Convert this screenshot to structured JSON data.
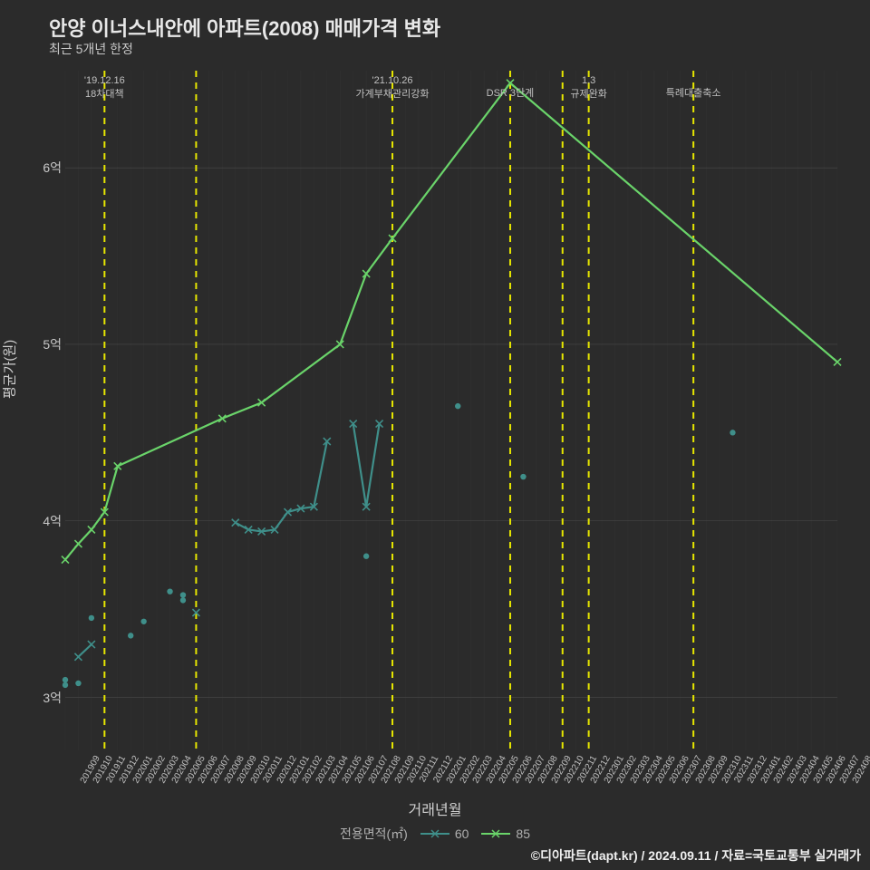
{
  "title": "안양 이너스내안에 아파트(2008) 매매가격 변화",
  "subtitle": "최근 5개년 한정",
  "xlabel": "거래년월",
  "ylabel": "평균가(원)",
  "legend_title": "전용면적(㎡)",
  "credit": "©디아파트(dapt.kr) / 2024.09.11 / 자료=국토교통부 실거래가",
  "colors": {
    "background": "#2b2b2b",
    "series60": "#3f8f8a",
    "series85": "#6ad46a",
    "vline": "#e6e600",
    "grid": "#4a4a4a",
    "text": "#d0d0d0"
  },
  "chart": {
    "type": "line-scatter",
    "x_categories": [
      "201909",
      "201910",
      "201911",
      "201912",
      "202001",
      "202002",
      "202003",
      "202004",
      "202005",
      "202006",
      "202007",
      "202008",
      "202009",
      "202010",
      "202011",
      "202012",
      "202101",
      "202102",
      "202103",
      "202104",
      "202105",
      "202106",
      "202107",
      "202108",
      "202109",
      "202110",
      "202111",
      "202112",
      "202201",
      "202202",
      "202203",
      "202204",
      "202205",
      "202206",
      "202207",
      "202208",
      "202209",
      "202210",
      "202211",
      "202212",
      "202301",
      "202302",
      "202303",
      "202304",
      "202305",
      "202306",
      "202307",
      "202308",
      "202309",
      "202310",
      "202311",
      "202312",
      "202401",
      "202402",
      "202403",
      "202404",
      "202405",
      "202406",
      "202407",
      "202408"
    ],
    "y_ticks": [
      3,
      4,
      5,
      6
    ],
    "y_tick_labels": [
      "3억",
      "4억",
      "5억",
      "6억"
    ],
    "y_min": 2.7,
    "y_max": 6.55,
    "line_width": 2,
    "marker_size": 4,
    "series": [
      {
        "name": "60",
        "color": "#3f8f8a",
        "marker": "x",
        "scatter": [
          {
            "x": "201909",
            "y": 3.07
          },
          {
            "x": "201909",
            "y": 3.1
          },
          {
            "x": "201910",
            "y": 3.08
          },
          {
            "x": "201911",
            "y": 3.45
          },
          {
            "x": "202002",
            "y": 3.35
          },
          {
            "x": "202003",
            "y": 3.43
          },
          {
            "x": "202005",
            "y": 3.6
          },
          {
            "x": "202006",
            "y": 3.55
          },
          {
            "x": "202006",
            "y": 3.58
          },
          {
            "x": "202108",
            "y": 3.8
          },
          {
            "x": "202203",
            "y": 4.65
          },
          {
            "x": "202208",
            "y": 4.25
          },
          {
            "x": "202312",
            "y": 4.5
          }
        ],
        "line_segments": [
          [
            {
              "x": "201910",
              "y": 3.23
            },
            {
              "x": "201911",
              "y": 3.3
            }
          ],
          [
            {
              "x": "202010",
              "y": 3.99
            },
            {
              "x": "202011",
              "y": 3.95
            },
            {
              "x": "202012",
              "y": 3.94
            },
            {
              "x": "202101",
              "y": 3.95
            },
            {
              "x": "202102",
              "y": 4.05
            },
            {
              "x": "202103",
              "y": 4.07
            },
            {
              "x": "202104",
              "y": 4.08
            },
            {
              "x": "202105",
              "y": 4.45
            }
          ],
          [
            {
              "x": "202107",
              "y": 4.55
            },
            {
              "x": "202108",
              "y": 4.08
            },
            {
              "x": "202109",
              "y": 4.55
            }
          ]
        ],
        "line_markers_x": [
          "202007"
        ]
      },
      {
        "name": "85",
        "color": "#6ad46a",
        "marker": "x",
        "line": [
          {
            "x": "201909",
            "y": 3.78
          },
          {
            "x": "201910",
            "y": 3.87
          },
          {
            "x": "201911",
            "y": 3.95
          },
          {
            "x": "201912",
            "y": 4.05
          },
          {
            "x": "202001",
            "y": 4.31
          },
          {
            "x": "202009",
            "y": 4.58
          },
          {
            "x": "202012",
            "y": 4.67
          },
          {
            "x": "202106",
            "y": 5.0
          },
          {
            "x": "202108",
            "y": 5.4
          },
          {
            "x": "202110",
            "y": 5.6
          },
          {
            "x": "202207",
            "y": 6.48
          },
          {
            "x": "202408",
            "y": 4.9
          }
        ]
      }
    ],
    "vlines": [
      {
        "x": "201912",
        "label": "'19.12.16\n18차대책"
      },
      {
        "x": "202007",
        "label": ""
      },
      {
        "x": "202110",
        "label": "'21.10.26\n가계부채관리강화"
      },
      {
        "x": "202207",
        "label": "DSR 3단계",
        "single": true
      },
      {
        "x": "202211",
        "label": ""
      },
      {
        "x": "202301",
        "label": "1.3\n규제완화"
      },
      {
        "x": "202309",
        "label": "특례대출축소",
        "single": true
      }
    ]
  }
}
